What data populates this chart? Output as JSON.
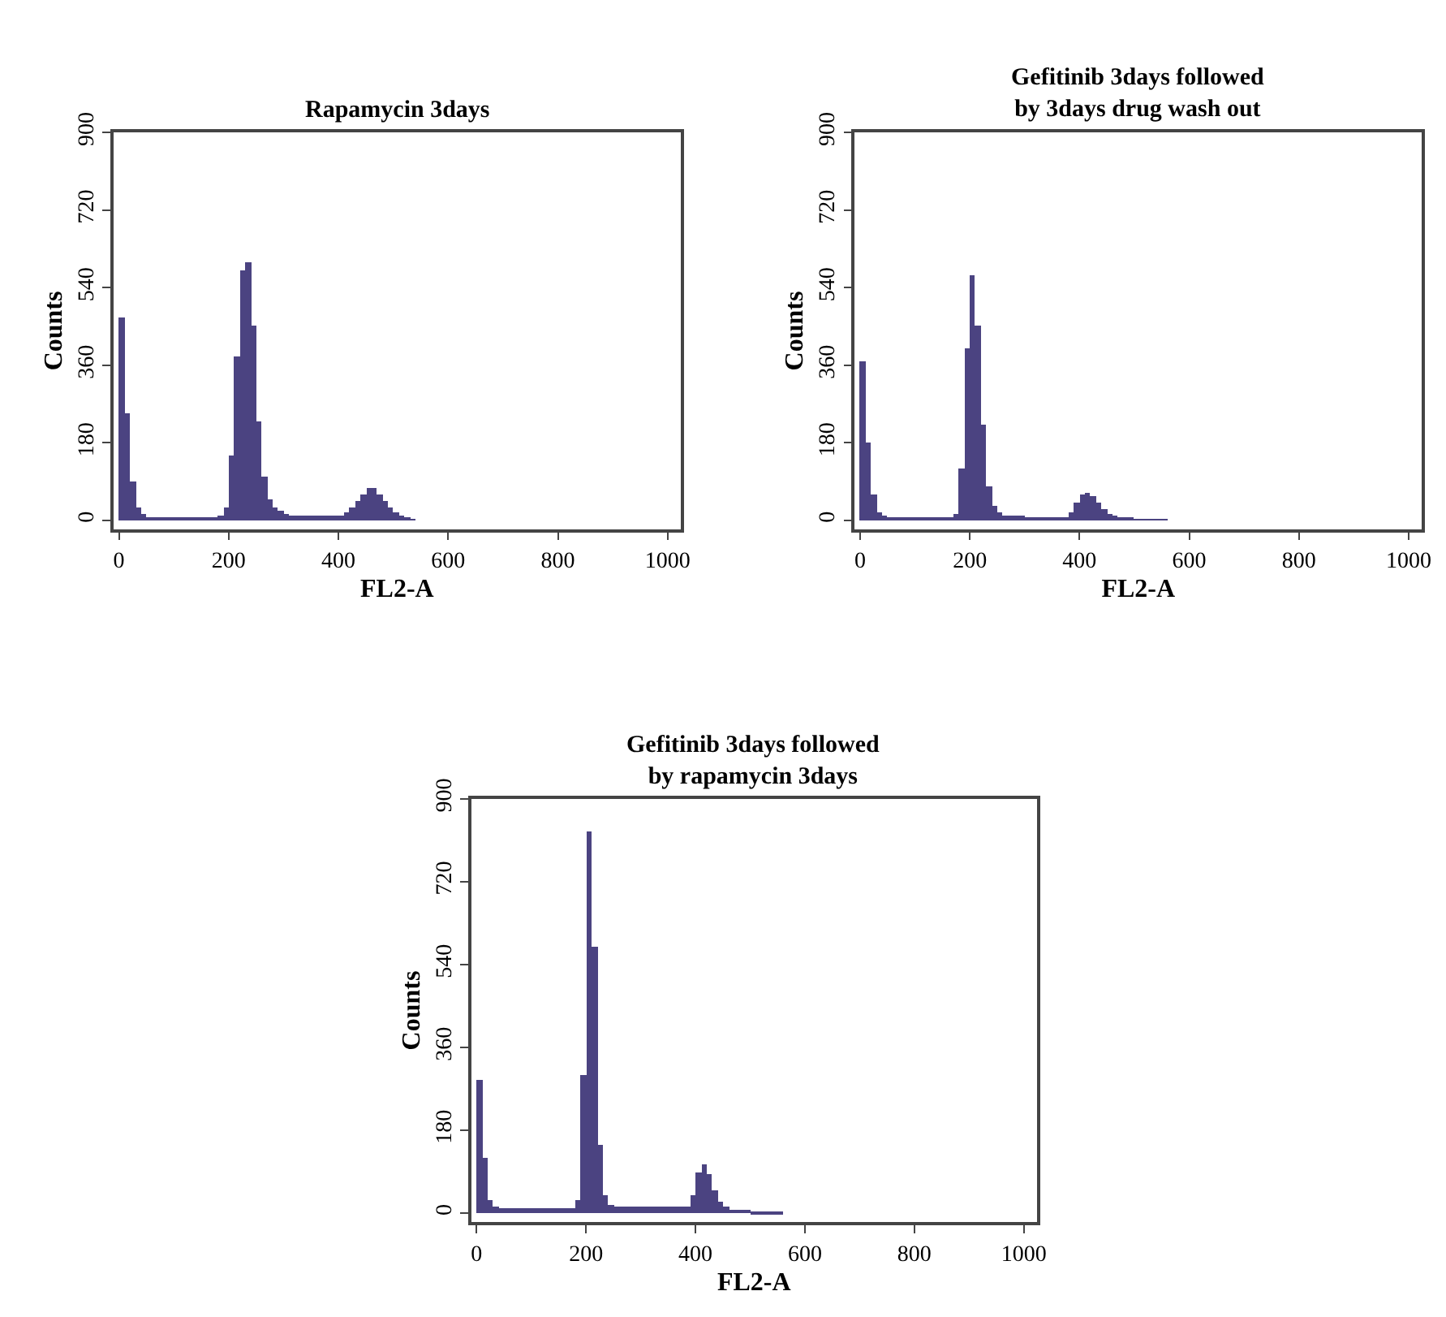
{
  "chart_data": [
    {
      "type": "histogram",
      "title": "Rapamycin 3days",
      "xlabel": "FL2-A",
      "ylabel": "Counts",
      "color": "#4b4381",
      "bins": [
        0,
        10,
        20,
        30,
        40,
        50,
        60,
        70,
        80,
        90,
        100,
        110,
        120,
        130,
        140,
        150,
        160,
        170,
        180,
        190,
        200,
        210,
        220,
        230,
        240,
        250,
        260,
        270,
        280,
        290,
        300,
        310,
        320,
        330,
        340,
        350,
        360,
        370,
        380,
        390,
        400,
        410,
        420,
        430,
        440,
        450,
        460,
        470,
        480,
        490,
        500,
        510,
        520,
        530,
        540,
        550,
        560
      ],
      "values": [
        470,
        250,
        90,
        30,
        15,
        8,
        8,
        8,
        8,
        8,
        8,
        8,
        8,
        8,
        8,
        8,
        8,
        8,
        10,
        30,
        150,
        380,
        580,
        600,
        450,
        230,
        100,
        50,
        30,
        22,
        15,
        12,
        10,
        10,
        10,
        10,
        10,
        10,
        10,
        10,
        12,
        18,
        30,
        45,
        60,
        75,
        75,
        60,
        45,
        30,
        18,
        10,
        5,
        2,
        0,
        0
      ],
      "xlim": [
        -10,
        1024
      ],
      "xticks": [
        0,
        200,
        400,
        600,
        800,
        1000
      ],
      "ylim": [
        -20,
        900
      ],
      "yticks": [
        0,
        180,
        360,
        540,
        720,
        900
      ]
    },
    {
      "type": "histogram",
      "title": "Gefitinib 3days followed\nby 3days drug wash out",
      "xlabel": "FL2-A",
      "ylabel": "Counts",
      "color": "#4b4381",
      "bins": [
        0,
        10,
        20,
        30,
        40,
        50,
        60,
        70,
        80,
        90,
        100,
        110,
        120,
        130,
        140,
        150,
        160,
        170,
        180,
        190,
        200,
        210,
        220,
        230,
        240,
        250,
        260,
        270,
        280,
        290,
        300,
        310,
        320,
        330,
        340,
        350,
        360,
        370,
        380,
        390,
        400,
        410,
        420,
        430,
        440,
        450,
        460,
        470,
        480,
        490,
        500,
        510,
        520,
        530,
        540,
        550,
        560
      ],
      "values": [
        370,
        180,
        60,
        20,
        10,
        6,
        6,
        6,
        6,
        6,
        6,
        6,
        6,
        6,
        6,
        6,
        6,
        15,
        120,
        400,
        570,
        450,
        220,
        80,
        35,
        20,
        12,
        10,
        10,
        10,
        8,
        8,
        8,
        8,
        8,
        8,
        8,
        8,
        20,
        40,
        60,
        65,
        55,
        40,
        25,
        15,
        10,
        6,
        6,
        6,
        2,
        2,
        2,
        2,
        2,
        2
      ],
      "xlim": [
        -10,
        1024
      ],
      "xticks": [
        0,
        200,
        400,
        600,
        800,
        1000
      ],
      "ylim": [
        -20,
        900
      ],
      "yticks": [
        0,
        180,
        360,
        540,
        720,
        900
      ]
    },
    {
      "type": "histogram",
      "title": "Gefitinib 3days followed\nby rapamycin 3days",
      "xlabel": "FL2-A",
      "ylabel": "Counts",
      "color": "#4b4381",
      "bins": [
        0,
        10,
        20,
        30,
        40,
        50,
        60,
        70,
        80,
        90,
        100,
        110,
        120,
        130,
        140,
        150,
        160,
        170,
        180,
        190,
        200,
        210,
        220,
        230,
        240,
        250,
        260,
        270,
        280,
        290,
        300,
        310,
        320,
        330,
        340,
        350,
        360,
        370,
        380,
        390,
        400,
        410,
        420,
        430,
        440,
        450,
        460,
        470,
        480,
        490,
        500,
        510,
        520,
        530,
        540,
        550,
        560
      ],
      "values": [
        290,
        120,
        30,
        15,
        10,
        10,
        10,
        10,
        10,
        10,
        10,
        10,
        10,
        10,
        10,
        10,
        10,
        10,
        30,
        300,
        830,
        580,
        150,
        40,
        20,
        15,
        15,
        15,
        15,
        15,
        15,
        15,
        15,
        15,
        15,
        15,
        15,
        15,
        15,
        40,
        90,
        105,
        85,
        50,
        25,
        15,
        8,
        8,
        8,
        8,
        3,
        3,
        3,
        3,
        3,
        3
      ],
      "xlim": [
        -10,
        1024
      ],
      "xticks": [
        0,
        200,
        400,
        600,
        800,
        1000
      ],
      "ylim": [
        -20,
        900
      ],
      "yticks": [
        0,
        180,
        360,
        540,
        720,
        900
      ]
    }
  ]
}
